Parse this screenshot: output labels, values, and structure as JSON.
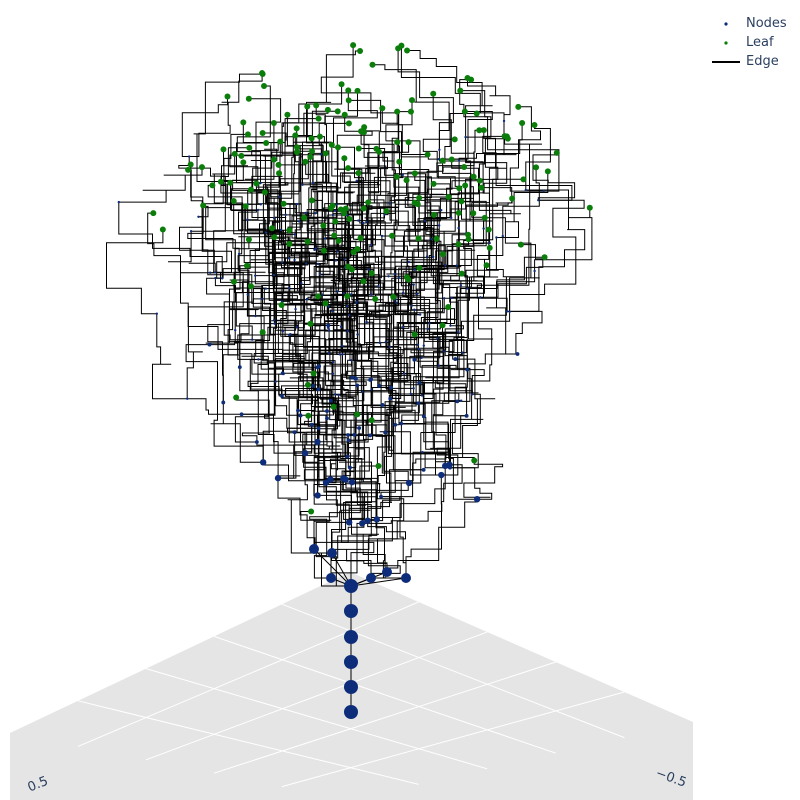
{
  "chart_data": {
    "type": "scatter3d",
    "title": "",
    "legend": {
      "placement": "top-right",
      "items": [
        {
          "name": "Nodes",
          "marker": "dot",
          "color": "#0d2d7a"
        },
        {
          "name": "Leaf",
          "marker": "dot",
          "color": "#0a7d0a"
        },
        {
          "name": "Edge",
          "marker": "line",
          "color": "#000000"
        }
      ]
    },
    "axes": {
      "x": {
        "visible_tick_label": "0.5"
      },
      "y": {
        "visible_tick_label": "−0.5"
      },
      "z": {
        "visible": false
      }
    },
    "floor": {
      "color": "#e5e5e5",
      "grid_color": "#ffffff"
    },
    "trunk": {
      "description": "vertical chain of large node markers leading up to the first branch point",
      "node_count": 6
    },
    "tree": {
      "structure": "random branching 3D tree with right-angle segments",
      "internal_node_color": "#0d2d7a",
      "leaf_color": "#0a7d0a",
      "edge_color": "#000000",
      "approx_leaf_count": 230
    }
  }
}
